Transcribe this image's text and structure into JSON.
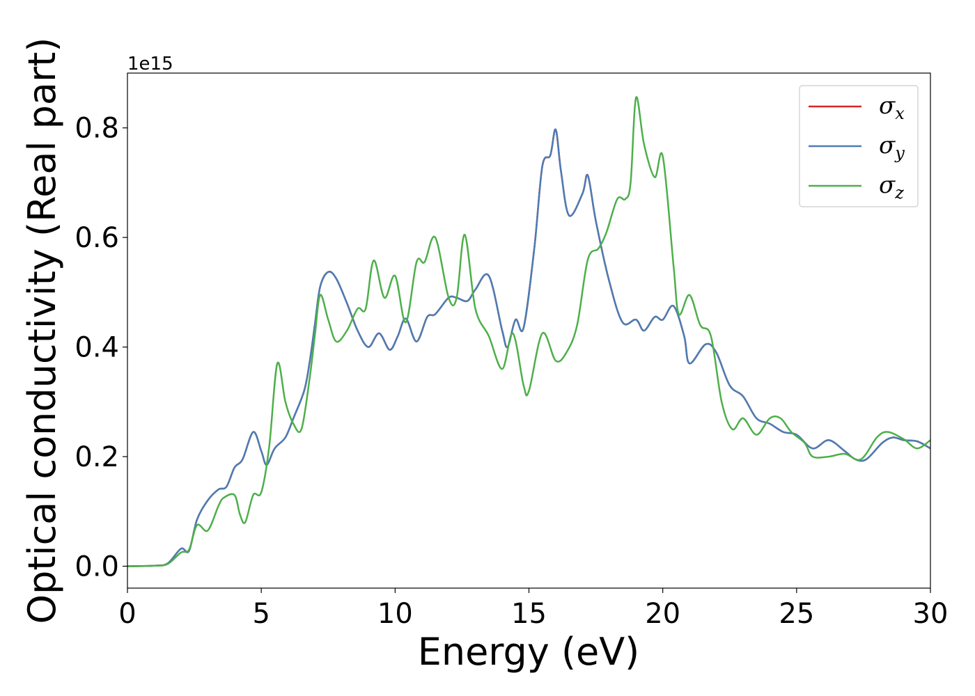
{
  "chart_data": {
    "type": "line",
    "xlabel": "Energy (eV)",
    "ylabel": "Optical conductivity (Real part)",
    "y_offset_label": "1e15",
    "xlim": [
      0,
      30
    ],
    "ylim": [
      -0.04,
      0.9
    ],
    "xticks": [
      0,
      5,
      10,
      15,
      20,
      25,
      30
    ],
    "xtick_labels": [
      "0",
      "5",
      "10",
      "15",
      "20",
      "25",
      "30"
    ],
    "yticks": [
      0.0,
      0.2,
      0.4,
      0.6,
      0.8
    ],
    "ytick_labels": [
      "0.0",
      "0.2",
      "0.4",
      "0.6",
      "0.8"
    ],
    "grid": false,
    "legend_position": "top-right",
    "series": [
      {
        "name": "σx",
        "symbol": "σ",
        "subscript": "x",
        "color": "#d62728",
        "points": [
          [
            0,
            0
          ],
          [
            1,
            0.001
          ],
          [
            1.5,
            0.005
          ],
          [
            2,
            0.032
          ],
          [
            2.3,
            0.028
          ],
          [
            2.6,
            0.085
          ],
          [
            3,
            0.12
          ],
          [
            3.4,
            0.14
          ],
          [
            3.7,
            0.145
          ],
          [
            4,
            0.18
          ],
          [
            4.3,
            0.195
          ],
          [
            4.7,
            0.245
          ],
          [
            5.0,
            0.21
          ],
          [
            5.2,
            0.185
          ],
          [
            5.5,
            0.215
          ],
          [
            5.9,
            0.235
          ],
          [
            6.2,
            0.27
          ],
          [
            6.6,
            0.32
          ],
          [
            6.8,
            0.37
          ],
          [
            7.0,
            0.44
          ],
          [
            7.2,
            0.51
          ],
          [
            7.5,
            0.537
          ],
          [
            7.8,
            0.525
          ],
          [
            8.2,
            0.48
          ],
          [
            8.6,
            0.43
          ],
          [
            9.0,
            0.4
          ],
          [
            9.4,
            0.425
          ],
          [
            9.8,
            0.395
          ],
          [
            10.1,
            0.42
          ],
          [
            10.4,
            0.452
          ],
          [
            10.8,
            0.41
          ],
          [
            11.2,
            0.455
          ],
          [
            11.5,
            0.46
          ],
          [
            12.0,
            0.49
          ],
          [
            12.3,
            0.49
          ],
          [
            12.7,
            0.484
          ],
          [
            13.0,
            0.505
          ],
          [
            13.5,
            0.53
          ],
          [
            14.0,
            0.43
          ],
          [
            14.2,
            0.4
          ],
          [
            14.5,
            0.45
          ],
          [
            14.8,
            0.435
          ],
          [
            15.2,
            0.58
          ],
          [
            15.5,
            0.73
          ],
          [
            15.8,
            0.75
          ],
          [
            16.0,
            0.797
          ],
          [
            16.2,
            0.72
          ],
          [
            16.5,
            0.64
          ],
          [
            17.0,
            0.68
          ],
          [
            17.2,
            0.713
          ],
          [
            17.5,
            0.63
          ],
          [
            18.0,
            0.52
          ],
          [
            18.5,
            0.445
          ],
          [
            19.0,
            0.45
          ],
          [
            19.3,
            0.43
          ],
          [
            19.7,
            0.455
          ],
          [
            20.0,
            0.45
          ],
          [
            20.4,
            0.475
          ],
          [
            20.8,
            0.42
          ],
          [
            21.0,
            0.37
          ],
          [
            21.6,
            0.405
          ],
          [
            22.0,
            0.39
          ],
          [
            22.5,
            0.33
          ],
          [
            23.0,
            0.31
          ],
          [
            23.5,
            0.27
          ],
          [
            24.0,
            0.26
          ],
          [
            24.5,
            0.245
          ],
          [
            25.0,
            0.24
          ],
          [
            25.6,
            0.215
          ],
          [
            26.2,
            0.23
          ],
          [
            26.8,
            0.21
          ],
          [
            27.2,
            0.195
          ],
          [
            27.6,
            0.195
          ],
          [
            28.2,
            0.225
          ],
          [
            28.6,
            0.235
          ],
          [
            29.0,
            0.23
          ],
          [
            29.5,
            0.228
          ],
          [
            30.0,
            0.215
          ]
        ]
      },
      {
        "name": "σy",
        "symbol": "σ",
        "subscript": "y",
        "color": "#4a7db5",
        "points": [
          [
            0,
            0
          ],
          [
            1,
            0.001
          ],
          [
            1.5,
            0.005
          ],
          [
            2,
            0.032
          ],
          [
            2.3,
            0.028
          ],
          [
            2.6,
            0.085
          ],
          [
            3,
            0.12
          ],
          [
            3.4,
            0.14
          ],
          [
            3.7,
            0.145
          ],
          [
            4,
            0.18
          ],
          [
            4.3,
            0.195
          ],
          [
            4.7,
            0.245
          ],
          [
            5.0,
            0.21
          ],
          [
            5.2,
            0.185
          ],
          [
            5.5,
            0.215
          ],
          [
            5.9,
            0.235
          ],
          [
            6.2,
            0.27
          ],
          [
            6.6,
            0.32
          ],
          [
            6.8,
            0.37
          ],
          [
            7.0,
            0.44
          ],
          [
            7.2,
            0.51
          ],
          [
            7.5,
            0.537
          ],
          [
            7.8,
            0.525
          ],
          [
            8.2,
            0.48
          ],
          [
            8.6,
            0.43
          ],
          [
            9.0,
            0.4
          ],
          [
            9.4,
            0.425
          ],
          [
            9.8,
            0.395
          ],
          [
            10.1,
            0.42
          ],
          [
            10.4,
            0.452
          ],
          [
            10.8,
            0.41
          ],
          [
            11.2,
            0.455
          ],
          [
            11.5,
            0.46
          ],
          [
            12.0,
            0.49
          ],
          [
            12.3,
            0.49
          ],
          [
            12.7,
            0.484
          ],
          [
            13.0,
            0.505
          ],
          [
            13.5,
            0.53
          ],
          [
            14.0,
            0.43
          ],
          [
            14.2,
            0.4
          ],
          [
            14.5,
            0.45
          ],
          [
            14.8,
            0.435
          ],
          [
            15.2,
            0.58
          ],
          [
            15.5,
            0.73
          ],
          [
            15.8,
            0.75
          ],
          [
            16.0,
            0.797
          ],
          [
            16.2,
            0.72
          ],
          [
            16.5,
            0.64
          ],
          [
            17.0,
            0.68
          ],
          [
            17.2,
            0.713
          ],
          [
            17.5,
            0.63
          ],
          [
            18.0,
            0.52
          ],
          [
            18.5,
            0.445
          ],
          [
            19.0,
            0.45
          ],
          [
            19.3,
            0.43
          ],
          [
            19.7,
            0.455
          ],
          [
            20.0,
            0.45
          ],
          [
            20.4,
            0.475
          ],
          [
            20.8,
            0.42
          ],
          [
            21.0,
            0.37
          ],
          [
            21.6,
            0.405
          ],
          [
            22.0,
            0.39
          ],
          [
            22.5,
            0.33
          ],
          [
            23.0,
            0.31
          ],
          [
            23.5,
            0.27
          ],
          [
            24.0,
            0.26
          ],
          [
            24.5,
            0.245
          ],
          [
            25.0,
            0.24
          ],
          [
            25.6,
            0.215
          ],
          [
            26.2,
            0.23
          ],
          [
            26.8,
            0.21
          ],
          [
            27.2,
            0.195
          ],
          [
            27.6,
            0.195
          ],
          [
            28.2,
            0.225
          ],
          [
            28.6,
            0.235
          ],
          [
            29.0,
            0.23
          ],
          [
            29.5,
            0.228
          ],
          [
            30.0,
            0.215
          ]
        ]
      },
      {
        "name": "σz",
        "symbol": "σ",
        "subscript": "z",
        "color": "#4daf4a",
        "points": [
          [
            0,
            0
          ],
          [
            1,
            0.001
          ],
          [
            1.5,
            0.004
          ],
          [
            2,
            0.025
          ],
          [
            2.3,
            0.03
          ],
          [
            2.6,
            0.075
          ],
          [
            3,
            0.065
          ],
          [
            3.4,
            0.11
          ],
          [
            3.6,
            0.125
          ],
          [
            4,
            0.13
          ],
          [
            4.2,
            0.095
          ],
          [
            4.4,
            0.08
          ],
          [
            4.7,
            0.13
          ],
          [
            5.0,
            0.135
          ],
          [
            5.3,
            0.22
          ],
          [
            5.6,
            0.37
          ],
          [
            5.9,
            0.3
          ],
          [
            6.2,
            0.26
          ],
          [
            6.5,
            0.25
          ],
          [
            6.8,
            0.34
          ],
          [
            7.0,
            0.42
          ],
          [
            7.2,
            0.495
          ],
          [
            7.5,
            0.45
          ],
          [
            7.8,
            0.41
          ],
          [
            8.2,
            0.43
          ],
          [
            8.6,
            0.47
          ],
          [
            8.9,
            0.47
          ],
          [
            9.2,
            0.558
          ],
          [
            9.6,
            0.49
          ],
          [
            10.0,
            0.53
          ],
          [
            10.4,
            0.445
          ],
          [
            10.8,
            0.555
          ],
          [
            11.1,
            0.555
          ],
          [
            11.5,
            0.6
          ],
          [
            12.0,
            0.49
          ],
          [
            12.3,
            0.49
          ],
          [
            12.6,
            0.605
          ],
          [
            13.0,
            0.47
          ],
          [
            13.5,
            0.42
          ],
          [
            14.0,
            0.36
          ],
          [
            14.4,
            0.425
          ],
          [
            14.8,
            0.33
          ],
          [
            15.0,
            0.32
          ],
          [
            15.5,
            0.425
          ],
          [
            16.0,
            0.375
          ],
          [
            16.4,
            0.39
          ],
          [
            16.8,
            0.44
          ],
          [
            17.2,
            0.56
          ],
          [
            17.6,
            0.58
          ],
          [
            17.9,
            0.61
          ],
          [
            18.3,
            0.67
          ],
          [
            18.6,
            0.67
          ],
          [
            18.8,
            0.7
          ],
          [
            19.0,
            0.855
          ],
          [
            19.3,
            0.77
          ],
          [
            19.7,
            0.71
          ],
          [
            20.0,
            0.748
          ],
          [
            20.4,
            0.55
          ],
          [
            20.6,
            0.46
          ],
          [
            21.0,
            0.495
          ],
          [
            21.4,
            0.44
          ],
          [
            21.8,
            0.42
          ],
          [
            22.2,
            0.3
          ],
          [
            22.6,
            0.25
          ],
          [
            23.0,
            0.27
          ],
          [
            23.5,
            0.24
          ],
          [
            24.0,
            0.27
          ],
          [
            24.4,
            0.27
          ],
          [
            24.8,
            0.245
          ],
          [
            25.3,
            0.225
          ],
          [
            25.6,
            0.2
          ],
          [
            26.2,
            0.2
          ],
          [
            26.8,
            0.205
          ],
          [
            27.4,
            0.195
          ],
          [
            28.0,
            0.235
          ],
          [
            28.4,
            0.245
          ],
          [
            29.0,
            0.232
          ],
          [
            29.5,
            0.215
          ],
          [
            30.0,
            0.23
          ]
        ]
      }
    ]
  }
}
